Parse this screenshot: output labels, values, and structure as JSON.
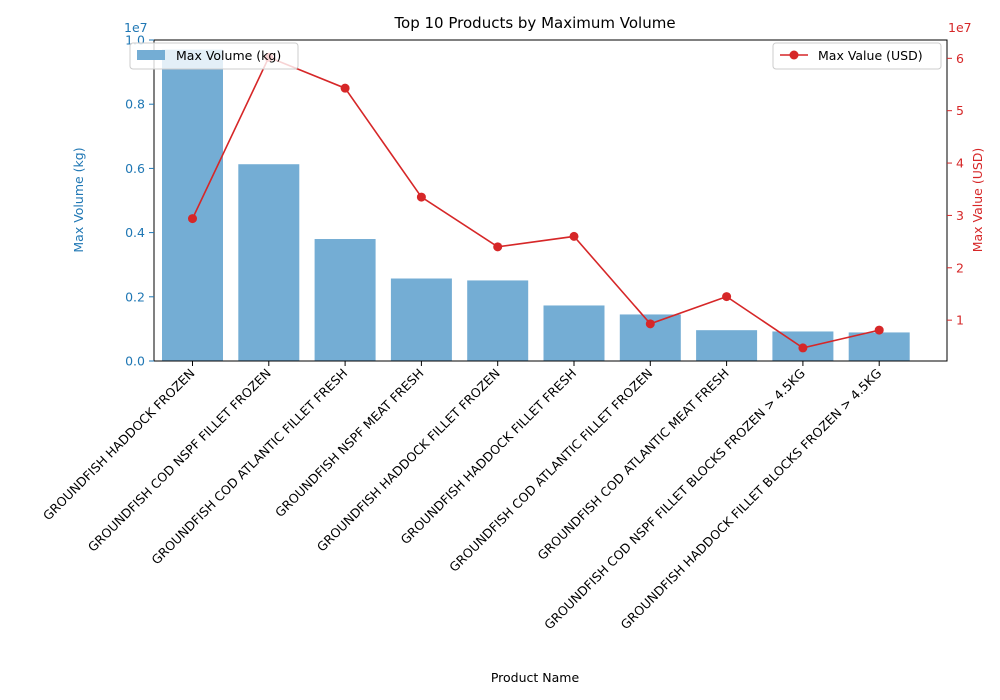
{
  "chart_data": {
    "type": "bar+line",
    "title": "Top 10 Products by Maximum Volume",
    "xlabel": "Product Name",
    "categories": [
      "GROUNDFISH HADDOCK FROZEN",
      "GROUNDFISH COD NSPF FILLET FROZEN",
      "GROUNDFISH COD ATLANTIC FILLET FRESH",
      "GROUNDFISH NSPF MEAT FRESH",
      "GROUNDFISH HADDOCK FILLET FROZEN",
      "GROUNDFISH HADDOCK FILLET FRESH",
      "GROUNDFISH COD ATLANTIC FILLET FROZEN",
      "GROUNDFISH COD ATLANTIC MEAT FRESH",
      "GROUNDFISH COD NSPF FILLET BLOCKS FROZEN > 4.5KG",
      "GROUNDFISH HADDOCK FILLET BLOCKS FROZEN > 4.5KG"
    ],
    "left_axis": {
      "label": "Max Volume (kg)",
      "multiplier": "1e7",
      "ylim": [
        0,
        1.0
      ],
      "ticks": [
        "0.0",
        "0.2",
        "0.4",
        "0.6",
        "0.8",
        "1.0"
      ],
      "color": "#1f77b4"
    },
    "right_axis": {
      "label": "Max Value (USD)",
      "multiplier": "1e7",
      "ylim": [
        0.22,
        6.35
      ],
      "ticks": [
        "1",
        "2",
        "3",
        "4",
        "5",
        "6"
      ],
      "color": "#d62728"
    },
    "series": [
      {
        "name": "Max Volume (kg)",
        "kind": "bar",
        "axis": "left",
        "color": "#74add4",
        "values": [
          9700000,
          6130000,
          3800000,
          2570000,
          2510000,
          1730000,
          1450000,
          960000,
          920000,
          890000
        ]
      },
      {
        "name": "Max Value (USD)",
        "kind": "line",
        "axis": "right",
        "color": "#d62728",
        "values": [
          29400000,
          60200000,
          54300000,
          33500000,
          24000000,
          26000000,
          9300000,
          14500000,
          4700000,
          8100000
        ]
      }
    ],
    "legend": [
      "top-left",
      "top-right"
    ],
    "grid": false
  }
}
